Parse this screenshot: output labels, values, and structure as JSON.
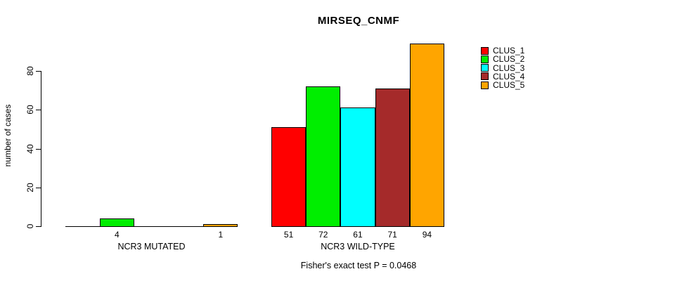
{
  "chart_data": {
    "type": "bar",
    "title": "MIRSEQ_CNMF",
    "ylabel": "number of cases",
    "xlabel": "",
    "footnote": "Fisher's exact test P = 0.0468",
    "categories": [
      "NCR3 MUTATED",
      "NCR3 WILD-TYPE"
    ],
    "series": [
      {
        "name": "CLUS_1",
        "color": "#FF0000",
        "values": [
          0,
          51
        ]
      },
      {
        "name": "CLUS_2",
        "color": "#00EE00",
        "values": [
          4,
          72
        ]
      },
      {
        "name": "CLUS_3",
        "color": "#00FFFF",
        "values": [
          0,
          61
        ]
      },
      {
        "name": "CLUS_4",
        "color": "#A52A2A",
        "values": [
          0,
          71
        ]
      },
      {
        "name": "CLUS_5",
        "color": "#FFA500",
        "values": [
          1,
          94
        ]
      }
    ],
    "yticks": [
      0,
      20,
      40,
      60,
      80
    ],
    "ylim": [
      0,
      94
    ],
    "grid": false,
    "legend_position": "right",
    "bar_value_labels": "shown under each nonzero bar",
    "axis_color": "#000000",
    "background_color": "#FFFFFF"
  }
}
